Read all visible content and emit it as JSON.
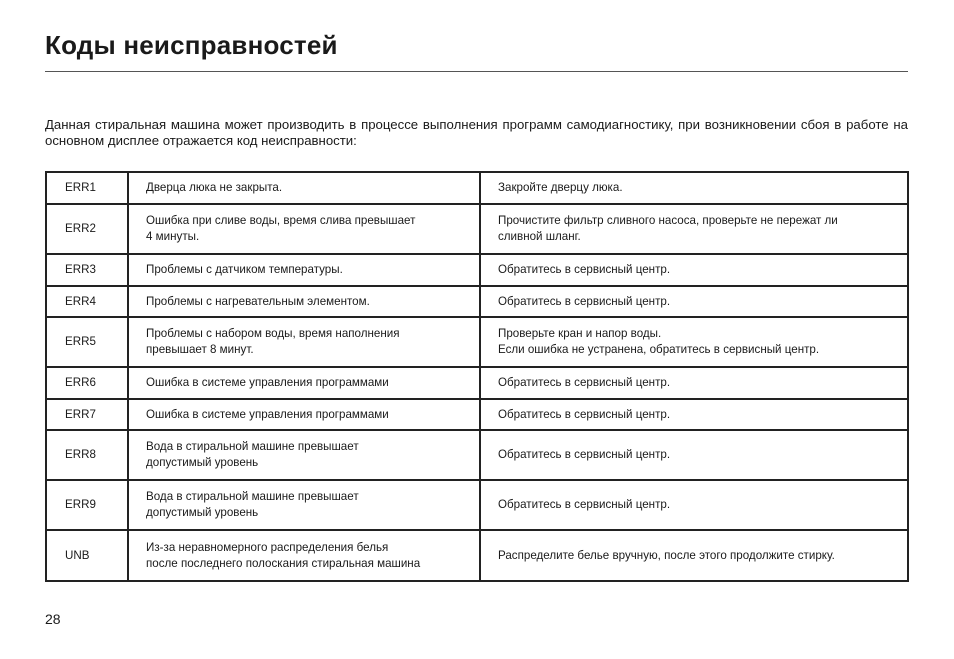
{
  "title": "Коды неисправностей",
  "intro": "Данная стиральная машина может производить в процессе выполнения программ самодиагностику, при возникновении сбоя в работе на основном дисплее отражается код неисправности:",
  "table": {
    "rows": [
      {
        "code": "ERR1",
        "problem": [
          "Дверца люка не закрыта."
        ],
        "solution": [
          "Закройте дверцу люка."
        ]
      },
      {
        "code": "ERR2",
        "problem": [
          "Ошибка при сливе воды, время слива превышает",
          "4 минуты."
        ],
        "solution": [
          "Прочистите фильтр сливного насоса, проверьте не пережат ли",
          "сливной шланг."
        ]
      },
      {
        "code": "ERR3",
        "problem": [
          "Проблемы с датчиком температуры."
        ],
        "solution": [
          "Обратитесь в сервисный центр."
        ]
      },
      {
        "code": "ERR4",
        "problem": [
          "Проблемы с нагревательным элементом."
        ],
        "solution": [
          "Обратитесь в сервисный центр."
        ]
      },
      {
        "code": "ERR5",
        "problem": [
          "Проблемы с  набором воды, время наполнения",
          "превышает 8 минут."
        ],
        "solution": [
          "Проверьте кран и напор воды.",
          "Если ошибка не устранена, обратитесь в сервисный центр."
        ]
      },
      {
        "code": "ERR6",
        "problem": [
          "Ошибка в системе управления программами"
        ],
        "solution": [
          "Обратитесь в сервисный центр."
        ]
      },
      {
        "code": "ERR7",
        "problem": [
          "Ошибка в системе управления программами"
        ],
        "solution": [
          "Обратитесь в сервисный центр."
        ]
      },
      {
        "code": "ERR8",
        "problem": [
          "Вода в стиральной машине превышает",
          "допустимый уровень"
        ],
        "solution": [
          "Обратитесь в сервисный центр."
        ]
      },
      {
        "code": "ERR9",
        "problem": [
          "Вода в стиральной машине превышает",
          "допустимый уровень"
        ],
        "solution": [
          "Обратитесь в сервисный центр."
        ]
      },
      {
        "code": "UNB",
        "problem": [
          "Из-за неравномерного распределения белья",
          "после последнего полоскания стиральная машина"
        ],
        "solution": [
          "Распределите белье вручную, после этого продолжите стирку."
        ]
      }
    ]
  },
  "page_number": "28"
}
